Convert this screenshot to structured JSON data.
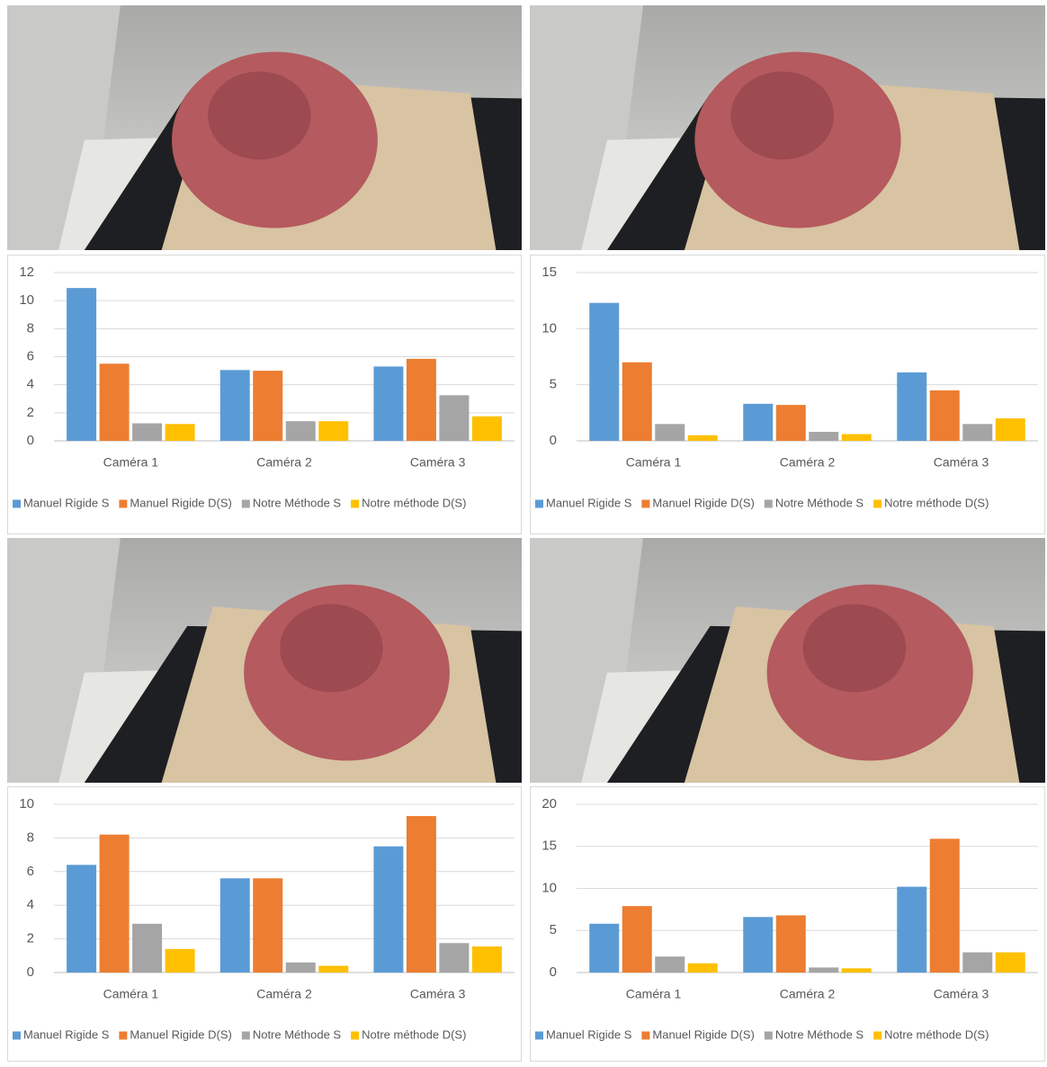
{
  "chart_data": [
    {
      "type": "bar",
      "categories": [
        "Caméra 1",
        "Caméra 2",
        "Caméra 3"
      ],
      "series": [
        {
          "name": "Manuel Rigide S",
          "color": "#5b9bd5",
          "values": [
            10.9,
            5.05,
            5.3
          ]
        },
        {
          "name": "Manuel Rigide D(S)",
          "color": "#ed7d31",
          "values": [
            5.5,
            5.0,
            5.85
          ]
        },
        {
          "name": "Notre Méthode S",
          "color": "#a5a5a5",
          "values": [
            1.25,
            1.4,
            3.25
          ]
        },
        {
          "name": "Notre méthode D(S)",
          "color": "#ffc000",
          "values": [
            1.2,
            1.4,
            1.75
          ]
        }
      ],
      "ylim": [
        0,
        12
      ],
      "yticks": [
        0,
        2,
        4,
        6,
        8,
        10,
        12
      ],
      "grid": true,
      "legend": "bottom"
    },
    {
      "type": "bar",
      "categories": [
        "Caméra 1",
        "Caméra 2",
        "Caméra 3"
      ],
      "series": [
        {
          "name": "Manuel Rigide S",
          "color": "#5b9bd5",
          "values": [
            12.3,
            3.3,
            6.1
          ]
        },
        {
          "name": "Manuel Rigide D(S)",
          "color": "#ed7d31",
          "values": [
            7.0,
            3.2,
            4.5
          ]
        },
        {
          "name": "Notre Méthode S",
          "color": "#a5a5a5",
          "values": [
            1.5,
            0.8,
            1.5
          ]
        },
        {
          "name": "Notre méthode D(S)",
          "color": "#ffc000",
          "values": [
            0.5,
            0.6,
            2.0
          ]
        }
      ],
      "ylim": [
        0,
        15
      ],
      "yticks": [
        0,
        5,
        10,
        15
      ],
      "grid": true,
      "legend": "bottom"
    },
    {
      "type": "bar",
      "categories": [
        "Caméra 1",
        "Caméra 2",
        "Caméra 3"
      ],
      "series": [
        {
          "name": "Manuel Rigide S",
          "color": "#5b9bd5",
          "values": [
            6.4,
            5.6,
            7.5
          ]
        },
        {
          "name": "Manuel Rigide D(S)",
          "color": "#ed7d31",
          "values": [
            8.2,
            5.6,
            9.3
          ]
        },
        {
          "name": "Notre Méthode S",
          "color": "#a5a5a5",
          "values": [
            2.9,
            0.6,
            1.75
          ]
        },
        {
          "name": "Notre méthode D(S)",
          "color": "#ffc000",
          "values": [
            1.4,
            0.4,
            1.55
          ]
        }
      ],
      "ylim": [
        0,
        10
      ],
      "yticks": [
        0,
        2,
        4,
        6,
        8,
        10
      ],
      "grid": true,
      "legend": "bottom"
    },
    {
      "type": "bar",
      "categories": [
        "Caméra 1",
        "Caméra 2",
        "Caméra 3"
      ],
      "series": [
        {
          "name": "Manuel Rigide S",
          "color": "#5b9bd5",
          "values": [
            5.8,
            6.6,
            10.2
          ]
        },
        {
          "name": "Manuel Rigide D(S)",
          "color": "#ed7d31",
          "values": [
            7.9,
            6.8,
            15.9
          ]
        },
        {
          "name": "Notre Méthode S",
          "color": "#a5a5a5",
          "values": [
            1.9,
            0.6,
            2.4
          ]
        },
        {
          "name": "Notre méthode D(S)",
          "color": "#ffc000",
          "values": [
            1.1,
            0.5,
            2.4
          ]
        }
      ],
      "ylim": [
        0,
        20
      ],
      "yticks": [
        0,
        5,
        10,
        15,
        20
      ],
      "grid": true,
      "legend": "bottom"
    }
  ]
}
